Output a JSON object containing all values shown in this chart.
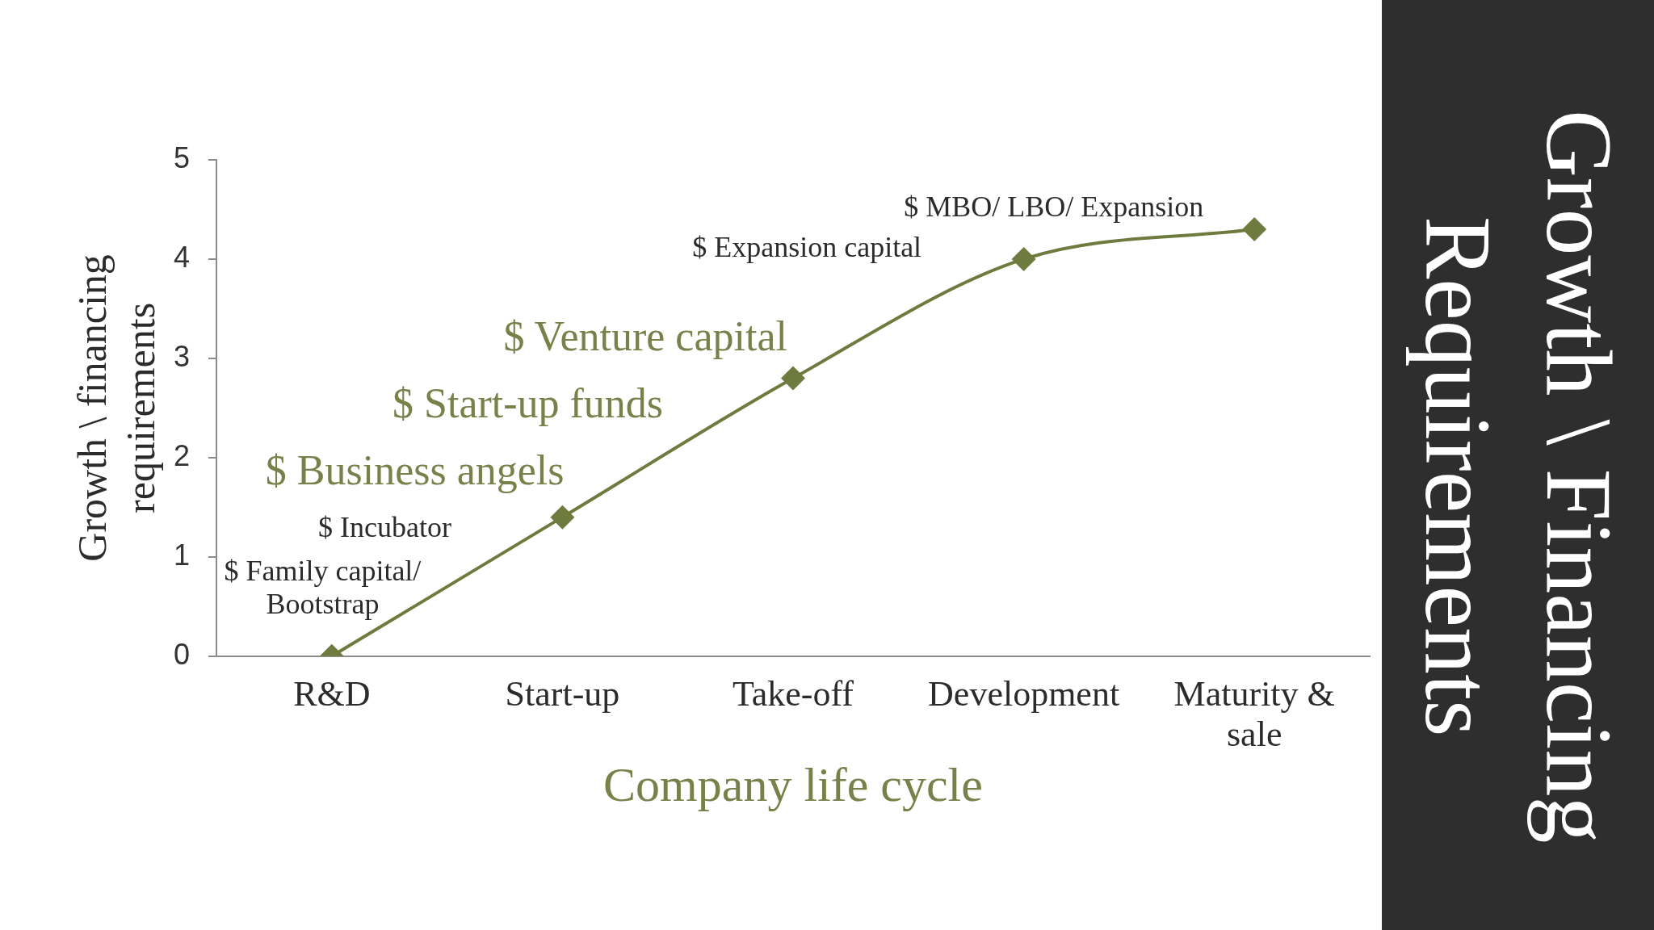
{
  "chart_data": {
    "type": "line",
    "title": "Growth \\ Financing Requirements",
    "xlabel": "Company life cycle",
    "ylabel": "Growth \\ financing requirements",
    "categories": [
      "R&D",
      "Start-up",
      "Take-off",
      "Development",
      "Maturity & sale"
    ],
    "series": [
      {
        "color": "#6e7b3e",
        "values": [
          0,
          1.4,
          2.8,
          4.0,
          4.3
        ]
      }
    ],
    "ylim": [
      0,
      5
    ],
    "yticks": [
      0,
      1,
      2,
      3,
      4,
      5
    ],
    "grid": false,
    "legend": false,
    "marker": "diamond",
    "line_style": "solid",
    "annotations": [
      "$ Family capital/ Bootstrap",
      "$ Incubator",
      "$ Business angels",
      "$ Start-up funds",
      "$ Venture capital",
      "$ Expansion capital",
      "$ MBO/ LBO/ Expansion"
    ]
  }
}
